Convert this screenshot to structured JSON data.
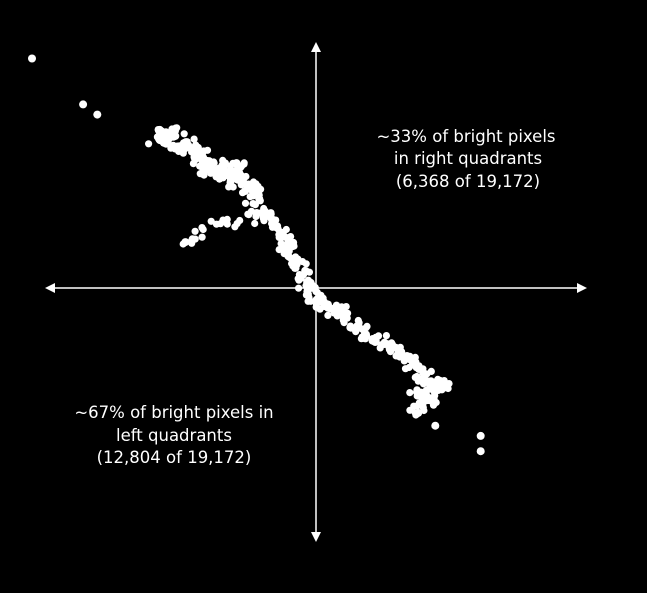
{
  "chart_data": {
    "type": "scatter",
    "title": "",
    "xlabel": "",
    "ylabel": "",
    "axes": {
      "arrows": true,
      "ticks": false,
      "grid": false
    },
    "colors": {
      "background": "#000000",
      "foreground": "#ffffff",
      "points": "#ffffff"
    },
    "xlim": [
      -1,
      1
    ],
    "ylim": [
      -1,
      1
    ],
    "annotations": {
      "right": [
        "~33% of bright pixels",
        "in right quadrants",
        "(6,368 of 19,172)"
      ],
      "left": [
        "~67% of bright pixels in",
        "left quadrants",
        "(12,804 of 19,172)"
      ]
    },
    "counts": {
      "total": 19172,
      "right": 6368,
      "left": 12804
    },
    "series": [
      {
        "points": [
          [
            -1.0,
            0.9
          ],
          [
            -0.82,
            0.72
          ],
          [
            -0.77,
            0.68
          ],
          [
            -0.55,
            0.62
          ],
          [
            -0.55,
            0.58
          ],
          [
            -0.5,
            0.61
          ],
          [
            -0.5,
            0.55
          ],
          [
            -0.45,
            0.56
          ],
          [
            -0.42,
            0.52
          ],
          [
            -0.4,
            0.5
          ],
          [
            -0.38,
            0.47
          ],
          [
            -0.35,
            0.45
          ],
          [
            -0.33,
            0.48
          ],
          [
            -0.3,
            0.42
          ],
          [
            -0.28,
            0.49
          ],
          [
            -0.25,
            0.38
          ],
          [
            -0.22,
            0.4
          ],
          [
            -0.2,
            0.35
          ],
          [
            -0.46,
            0.18
          ],
          [
            -0.18,
            0.3
          ],
          [
            -0.15,
            0.25
          ],
          [
            -0.12,
            0.2
          ],
          [
            -0.1,
            0.15
          ],
          [
            -0.08,
            0.1
          ],
          [
            -0.05,
            0.05
          ],
          [
            -0.02,
            0.0
          ],
          [
            0.0,
            -0.05
          ],
          [
            0.05,
            -0.08
          ],
          [
            0.1,
            -0.1
          ],
          [
            0.15,
            -0.15
          ],
          [
            0.2,
            -0.2
          ],
          [
            0.25,
            -0.22
          ],
          [
            0.3,
            -0.25
          ],
          [
            0.35,
            -0.3
          ],
          [
            0.38,
            -0.35
          ],
          [
            0.42,
            -0.37
          ],
          [
            0.45,
            -0.38
          ],
          [
            0.43,
            -0.4
          ],
          [
            0.37,
            -0.41
          ],
          [
            0.4,
            -0.44
          ],
          [
            0.36,
            -0.49
          ],
          [
            0.42,
            -0.54
          ],
          [
            0.58,
            -0.58
          ],
          [
            0.58,
            -0.64
          ]
        ]
      }
    ]
  }
}
